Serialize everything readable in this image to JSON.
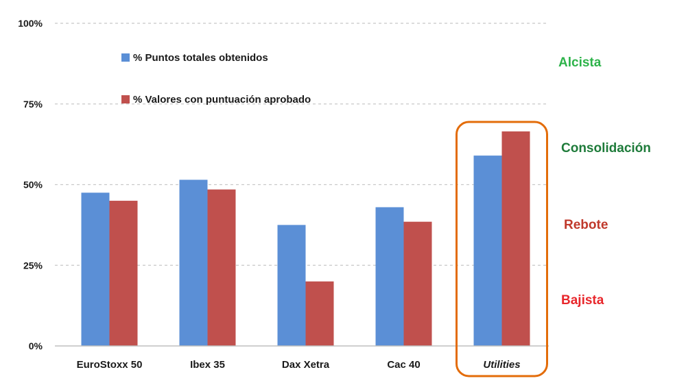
{
  "chart_data": {
    "type": "bar",
    "categories": [
      "EuroStoxx 50",
      "Ibex 35",
      "Dax Xetra",
      "Cac 40",
      "Utilities"
    ],
    "series": [
      {
        "name": "% Puntos totales obtenidos",
        "color": "#5B8FD6",
        "values": [
          47.5,
          51.5,
          37.5,
          43,
          59
        ]
      },
      {
        "name": "% Valores con puntuación aprobado",
        "color": "#C0504D",
        "values": [
          45,
          48.5,
          20,
          38.5,
          66.5
        ]
      }
    ],
    "yticks": [
      "0%",
      "25%",
      "50%",
      "75%",
      "100%"
    ],
    "ylim": [
      0,
      100
    ],
    "grid": true,
    "legend_position": "top-left",
    "highlight_category": "Utilities",
    "highlight_color": "#E36C09",
    "title": "",
    "xlabel": "",
    "ylabel": ""
  },
  "zones": [
    {
      "label": "Alcista",
      "color": "#2DB34A"
    },
    {
      "label": "Consolidación",
      "color": "#1E7B3A"
    },
    {
      "label": "Rebote",
      "color": "#C0392B"
    },
    {
      "label": "Bajista",
      "color": "#E8262B"
    }
  ]
}
